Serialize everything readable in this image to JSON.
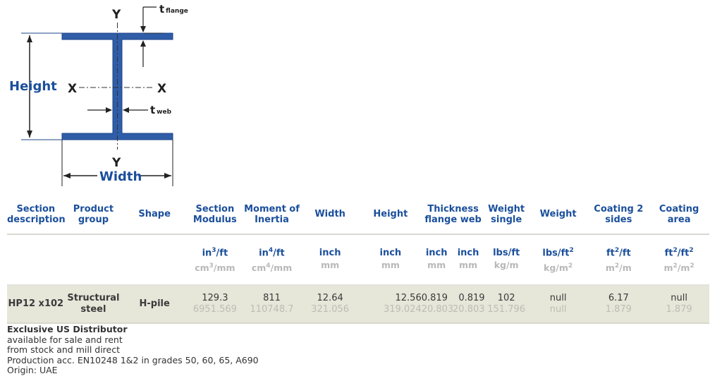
{
  "diagram": {
    "label_y": "Y",
    "label_x": "X",
    "label_t": "t",
    "label_t_flange_sub": "flange",
    "label_t_web_sub": "web",
    "label_height": "Height",
    "label_width": "Width"
  },
  "table": {
    "headers": {
      "section_description": [
        "Section",
        "description"
      ],
      "product_group": [
        "Product",
        "group"
      ],
      "shape": "Shape",
      "section_modulus": [
        "Section",
        "Modulus"
      ],
      "moment_of_inertia": [
        "Moment of",
        "Inertia"
      ],
      "width": "Width",
      "height": "Height",
      "thickness": [
        "Thickness",
        "flange web"
      ],
      "weight_single": [
        "Weight",
        "single"
      ],
      "weight": "Weight",
      "coating_2_sides": [
        "Coating 2",
        "sides"
      ],
      "coating_area": [
        "Coating",
        "area"
      ]
    },
    "units": {
      "modulus_imp": "in",
      "modulus_imp_exp": "3",
      "modulus_imp_tail": "/ft",
      "modulus_met": "cm",
      "modulus_met_exp": "3",
      "modulus_met_tail": "/mm",
      "inertia_imp": "in",
      "inertia_imp_exp": "4",
      "inertia_imp_tail": "/ft",
      "inertia_met": "cm",
      "inertia_met_exp": "4",
      "inertia_met_tail": "/mm",
      "width_imp": "inch",
      "width_met": "mm",
      "height_imp": "inch",
      "height_met": "mm",
      "flange_imp": "inch",
      "flange_met": "mm",
      "web_imp": "inch",
      "web_met": "mm",
      "wsingle_imp": "lbs/ft",
      "wsingle_met": "kg/m",
      "weight_imp": "lbs/ft",
      "weight_imp_exp": "2",
      "weight_met": "kg/m",
      "weight_met_exp": "2",
      "coat2_imp": "ft",
      "coat2_imp_exp": "2",
      "coat2_imp_tail": "/ft",
      "coat2_met": "m",
      "coat2_met_exp": "2",
      "coat2_met_tail": "/m",
      "coatarea_imp_a": "ft",
      "coatarea_imp_exp_a": "2",
      "coatarea_imp_b": "/ft",
      "coatarea_imp_exp_b": "2",
      "coatarea_met_a": "m",
      "coatarea_met_exp_a": "2",
      "coatarea_met_b": "/m",
      "coatarea_met_exp_b": "2"
    },
    "row": {
      "name": "HP12 x102",
      "group": [
        "Structural",
        "steel"
      ],
      "shape": "H-pile",
      "modulus": "129.3",
      "modulus_met": "6951.569",
      "inertia": "811",
      "inertia_met": "110748.7",
      "width": "12.64",
      "width_met": "321.056",
      "height": "12.56",
      "height_met": "319.024",
      "flange": "0.819",
      "flange_met": "20.803",
      "web": "0.819",
      "web_met": "20.803",
      "wsingle": "102",
      "wsingle_met": "151.796",
      "weight": "null",
      "weight_met": "null",
      "coat2": "6.17",
      "coat2_met": "1.879",
      "coatarea": "null",
      "coatarea_met": "1.879"
    }
  },
  "notes": {
    "title": "Exclusive US Distributor",
    "lines": [
      "available for sale and rent",
      "from stock and mill direct",
      "Production acc. EN10248 1&2 in grades 50, 60, 65, A690",
      "Origin: UAE"
    ]
  },
  "colors": {
    "steel_blue": "#2f5da8",
    "header_blue": "#1b4f9c",
    "row_bg": "#e6e6d9"
  }
}
